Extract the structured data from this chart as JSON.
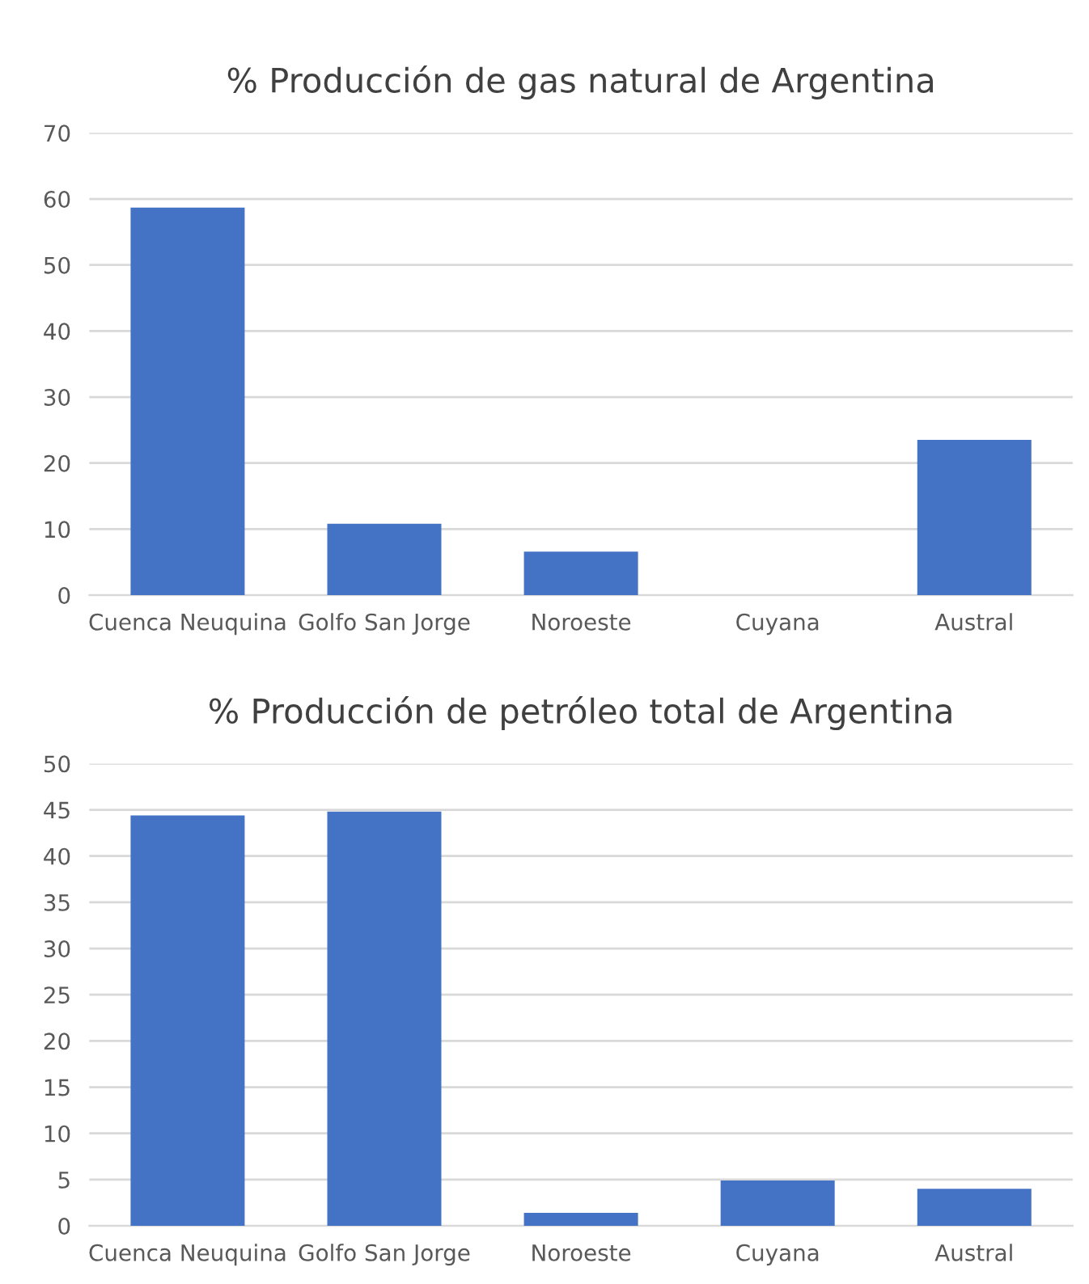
{
  "chart_data": [
    {
      "type": "bar",
      "title": "% Producción de gas natural de Argentina",
      "categories": [
        "Cuenca Neuquina",
        "Golfo San Jorge",
        "Noroeste",
        "Cuyana",
        "Austral"
      ],
      "values": [
        58.7,
        10.8,
        6.6,
        0,
        23.5
      ],
      "color": "#4472c4",
      "ylim": [
        0,
        70
      ],
      "yticks": [
        0,
        10,
        20,
        30,
        40,
        50,
        60,
        70
      ],
      "grid": "y"
    },
    {
      "type": "bar",
      "title": "% Producción de petróleo total de Argentina",
      "categories": [
        "Cuenca Neuquina",
        "Golfo San Jorge",
        "Noroeste",
        "Cuyana",
        "Austral"
      ],
      "values": [
        44.4,
        44.8,
        1.4,
        4.9,
        4.0
      ],
      "color": "#4472c4",
      "ylim": [
        0,
        50
      ],
      "yticks": [
        0,
        5,
        10,
        15,
        20,
        25,
        30,
        35,
        40,
        45,
        50
      ],
      "grid": "y"
    }
  ]
}
